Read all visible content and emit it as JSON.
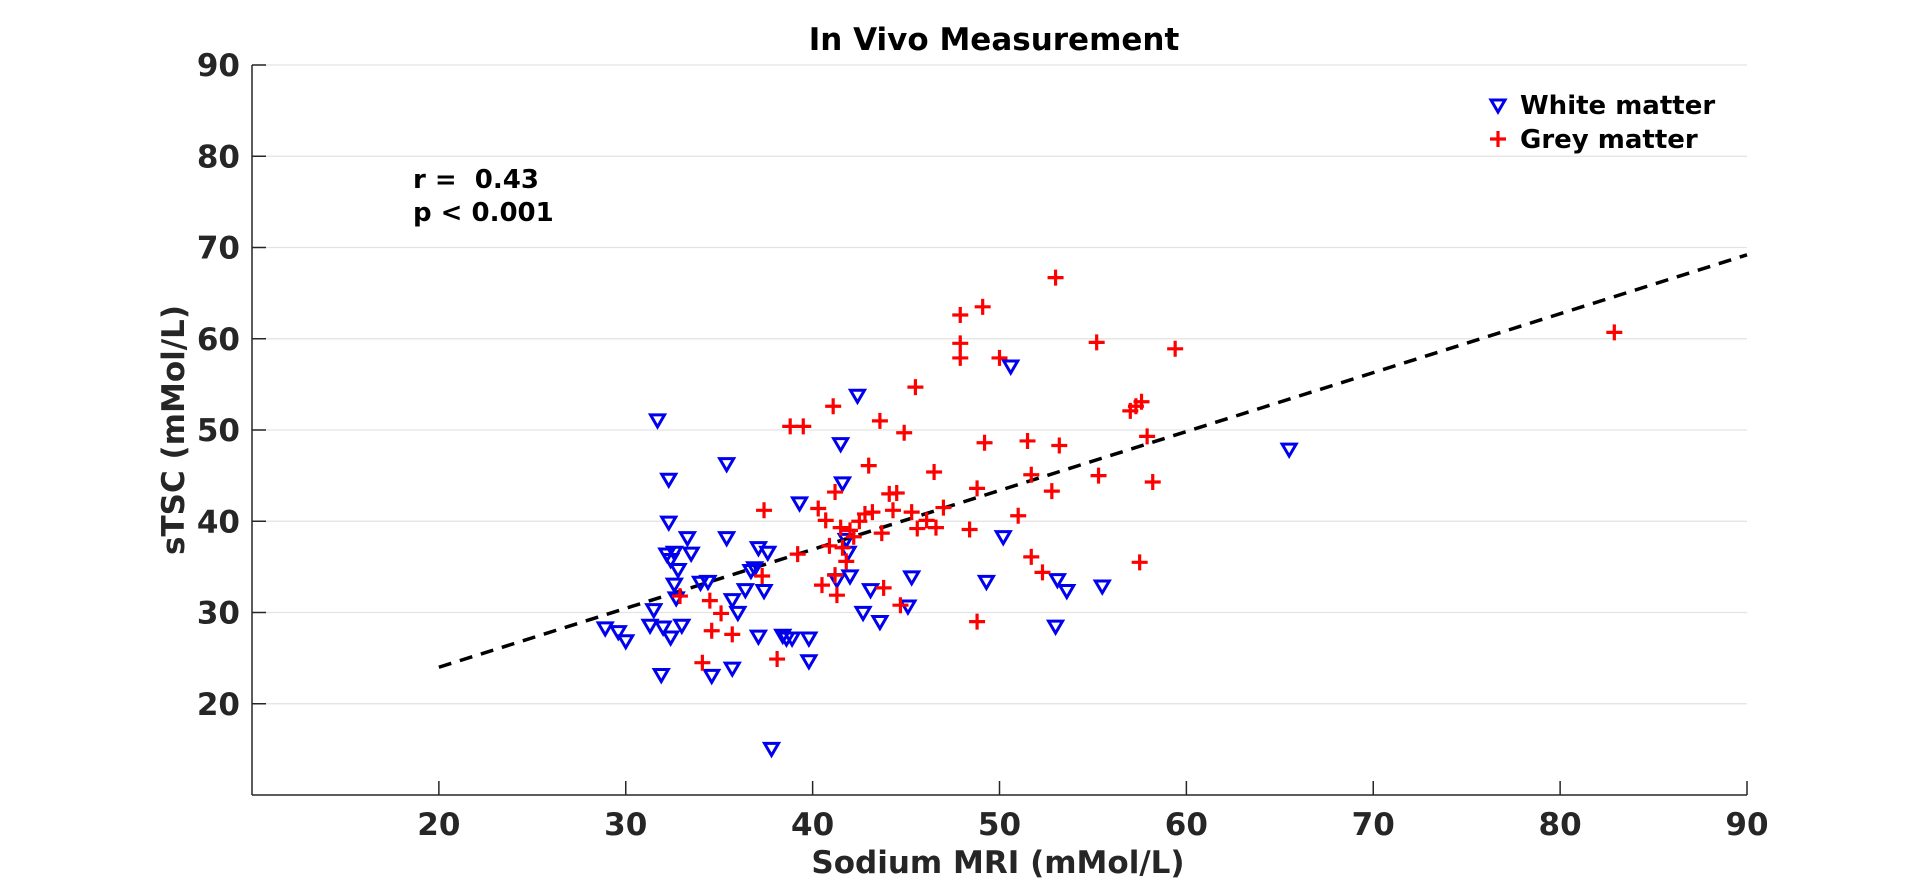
{
  "chart_data": {
    "type": "scatter",
    "title": "In Vivo Measurement",
    "xlabel": "Sodium MRI (mMol/L)",
    "ylabel": "sTSC (mMol/L)",
    "xlim": [
      10,
      90
    ],
    "ylim": [
      10,
      90
    ],
    "xticks": [
      20,
      30,
      40,
      50,
      60,
      70,
      80,
      90
    ],
    "yticks": [
      20,
      30,
      40,
      50,
      60,
      70,
      80,
      90
    ],
    "grid": "horizontal",
    "legend_position": "top-right",
    "annotation": {
      "r_label": "r =  0.43",
      "p_label": "p < 0.001"
    },
    "fit_line": {
      "x": [
        20,
        90
      ],
      "y": [
        24.0,
        69.2
      ],
      "style": "dashed",
      "color": "#000000"
    },
    "series": [
      {
        "name": "White matter",
        "marker": "triangle-down",
        "color": "#0000ee",
        "points": [
          [
            28.9,
            28.2
          ],
          [
            29.6,
            27.8
          ],
          [
            30.0,
            26.8
          ],
          [
            31.3,
            28.5
          ],
          [
            31.5,
            30.2
          ],
          [
            31.7,
            51.0
          ],
          [
            31.9,
            23.1
          ],
          [
            32.0,
            28.3
          ],
          [
            32.2,
            36.3
          ],
          [
            32.3,
            44.5
          ],
          [
            32.3,
            39.8
          ],
          [
            32.4,
            27.2
          ],
          [
            32.4,
            35.7
          ],
          [
            32.6,
            36.5
          ],
          [
            32.6,
            33.0
          ],
          [
            32.7,
            31.5
          ],
          [
            32.8,
            34.6
          ],
          [
            33.0,
            28.5
          ],
          [
            33.3,
            38.1
          ],
          [
            33.5,
            36.4
          ],
          [
            34.0,
            33.2
          ],
          [
            34.4,
            33.3
          ],
          [
            34.6,
            23.0
          ],
          [
            35.4,
            46.2
          ],
          [
            35.4,
            38.1
          ],
          [
            35.7,
            31.3
          ],
          [
            35.7,
            23.8
          ],
          [
            36.0,
            29.9
          ],
          [
            36.4,
            32.4
          ],
          [
            36.7,
            34.5
          ],
          [
            36.9,
            34.8
          ],
          [
            37.1,
            37.0
          ],
          [
            37.1,
            27.3
          ],
          [
            37.4,
            32.3
          ],
          [
            37.6,
            36.5
          ],
          [
            37.8,
            15.0
          ],
          [
            38.4,
            27.4
          ],
          [
            38.6,
            27.1
          ],
          [
            38.9,
            27.1
          ],
          [
            39.3,
            41.9
          ],
          [
            39.8,
            27.1
          ],
          [
            39.8,
            24.6
          ],
          [
            41.3,
            33.5
          ],
          [
            41.5,
            48.4
          ],
          [
            41.6,
            44.1
          ],
          [
            41.8,
            37.9
          ],
          [
            41.9,
            36.5
          ],
          [
            42.0,
            33.9
          ],
          [
            42.4,
            53.7
          ],
          [
            42.7,
            29.9
          ],
          [
            43.1,
            32.4
          ],
          [
            43.6,
            28.9
          ],
          [
            45.1,
            30.6
          ],
          [
            45.3,
            33.8
          ],
          [
            49.3,
            33.3
          ],
          [
            50.2,
            38.2
          ],
          [
            50.6,
            56.9
          ],
          [
            53.0,
            28.4
          ],
          [
            53.1,
            33.5
          ],
          [
            53.6,
            32.3
          ],
          [
            55.5,
            32.8
          ],
          [
            65.5,
            47.8
          ]
        ]
      },
      {
        "name": "Grey matter",
        "marker": "plus",
        "color": "#ff0000",
        "points": [
          [
            32.9,
            31.8
          ],
          [
            34.1,
            24.5
          ],
          [
            34.5,
            31.3
          ],
          [
            34.6,
            28.0
          ],
          [
            35.1,
            29.9
          ],
          [
            35.7,
            27.6
          ],
          [
            37.3,
            34.0
          ],
          [
            37.4,
            41.2
          ],
          [
            38.1,
            24.9
          ],
          [
            38.8,
            50.4
          ],
          [
            39.2,
            36.4
          ],
          [
            39.5,
            50.4
          ],
          [
            40.3,
            41.4
          ],
          [
            40.5,
            33.0
          ],
          [
            40.7,
            40.1
          ],
          [
            40.9,
            37.3
          ],
          [
            41.1,
            52.6
          ],
          [
            41.2,
            43.2
          ],
          [
            41.2,
            34.1
          ],
          [
            41.3,
            31.9
          ],
          [
            41.5,
            39.3
          ],
          [
            41.6,
            37.1
          ],
          [
            41.8,
            35.6
          ],
          [
            42.0,
            39.0
          ],
          [
            42.2,
            38.3
          ],
          [
            42.5,
            40.0
          ],
          [
            42.8,
            40.8
          ],
          [
            43.0,
            46.1
          ],
          [
            43.2,
            41.0
          ],
          [
            43.6,
            51.0
          ],
          [
            43.7,
            38.7
          ],
          [
            43.8,
            32.7
          ],
          [
            44.1,
            43.0
          ],
          [
            44.3,
            41.2
          ],
          [
            44.5,
            43.1
          ],
          [
            44.7,
            30.8
          ],
          [
            44.9,
            49.7
          ],
          [
            45.3,
            41.0
          ],
          [
            45.5,
            54.7
          ],
          [
            45.6,
            39.2
          ],
          [
            46.1,
            40.1
          ],
          [
            46.5,
            45.4
          ],
          [
            46.6,
            39.3
          ],
          [
            47.0,
            41.5
          ],
          [
            47.9,
            62.6
          ],
          [
            47.9,
            59.5
          ],
          [
            47.9,
            57.9
          ],
          [
            48.4,
            39.1
          ],
          [
            48.8,
            43.6
          ],
          [
            48.8,
            29.0
          ],
          [
            49.1,
            63.5
          ],
          [
            49.2,
            48.6
          ],
          [
            50.0,
            57.9
          ],
          [
            51.0,
            40.6
          ],
          [
            51.5,
            48.8
          ],
          [
            51.7,
            45.1
          ],
          [
            51.7,
            36.1
          ],
          [
            52.3,
            34.4
          ],
          [
            52.8,
            43.3
          ],
          [
            53.0,
            66.7
          ],
          [
            53.2,
            48.3
          ],
          [
            55.2,
            59.6
          ],
          [
            55.3,
            45.0
          ],
          [
            57.0,
            52.1
          ],
          [
            57.3,
            52.6
          ],
          [
            57.5,
            35.5
          ],
          [
            57.6,
            53.1
          ],
          [
            57.9,
            49.3
          ],
          [
            58.2,
            44.3
          ],
          [
            59.4,
            58.9
          ],
          [
            82.9,
            60.7
          ]
        ]
      }
    ]
  }
}
